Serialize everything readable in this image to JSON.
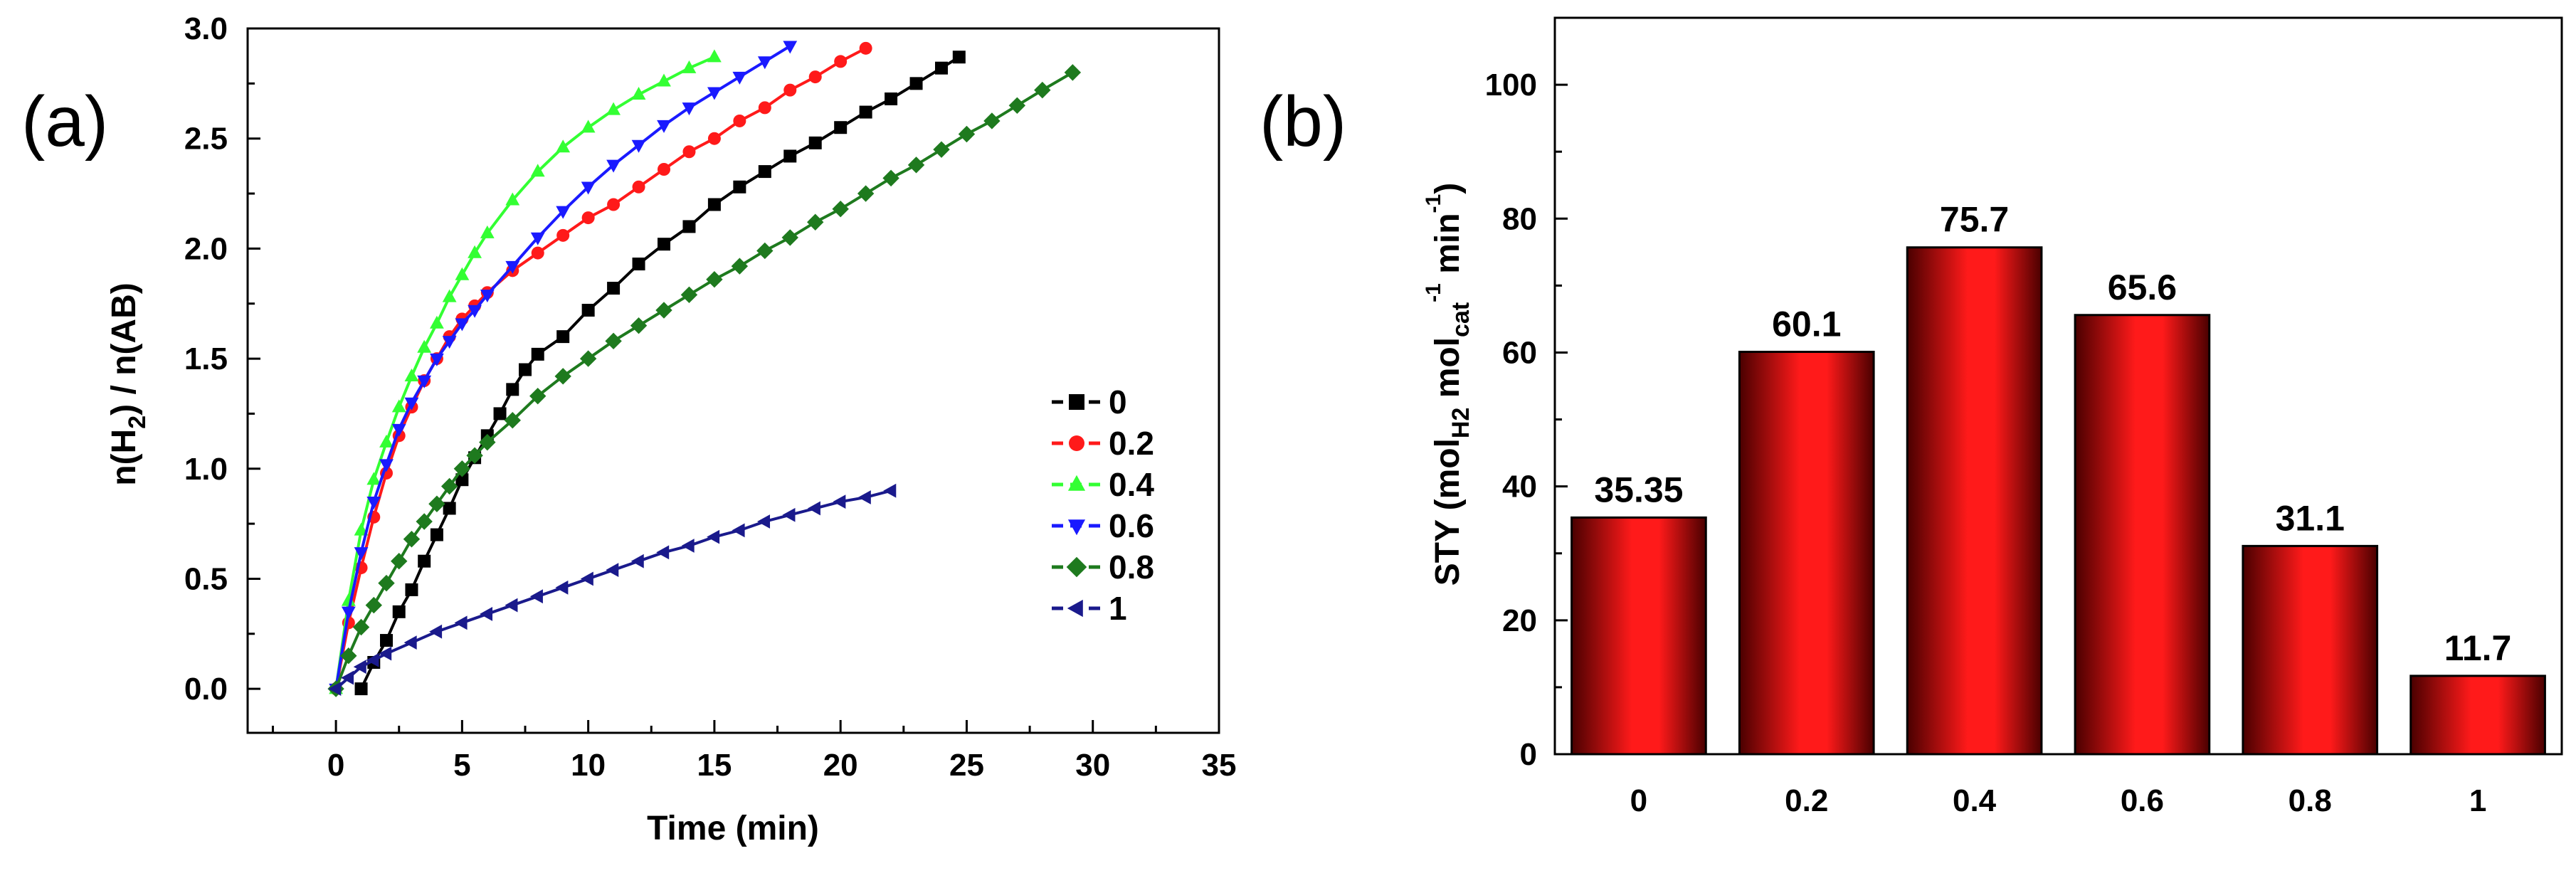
{
  "panels": {
    "a_label": "(a)",
    "b_label": "(b)"
  },
  "colors": {
    "series_0": "#000000",
    "series_0.2": "#ff1a1a",
    "series_0.4": "#33ff33",
    "series_0.6": "#1a1aff",
    "series_0.8": "#1e7a1e",
    "series_1": "#1a1a8c",
    "bar_highlight": "#ff1a1a",
    "bar_dark": "#5a0000"
  },
  "chart_data": [
    {
      "type": "line",
      "xlabel": "Time (min)",
      "ylabel": "n(H2) / n(AB)",
      "ylabel_parts": {
        "pre": "n(H",
        "sub": "2",
        "post": ") / n(AB)"
      },
      "xlim": [
        -3.5,
        35
      ],
      "ylim": [
        -0.2,
        3.0
      ],
      "xticks": [
        0,
        5,
        10,
        15,
        20,
        25,
        30,
        35
      ],
      "yticks": [
        0.0,
        0.5,
        1.0,
        1.5,
        2.0,
        2.5,
        3.0
      ],
      "xtick_labels": [
        "0",
        "5",
        "10",
        "15",
        "20",
        "25",
        "30",
        "35"
      ],
      "ytick_labels": [
        "0.0",
        "0.5",
        "1.0",
        "1.5",
        "2.0",
        "2.5",
        "3.0"
      ],
      "legend_position": "right",
      "series": [
        {
          "name": "0",
          "marker": "square",
          "color": "#000000",
          "x": [
            1.0,
            1.5,
            2.0,
            2.5,
            3.0,
            3.5,
            4.0,
            4.5,
            5.0,
            5.5,
            6.0,
            6.5,
            7.0,
            7.5,
            8.0,
            9.0,
            10.0,
            11.0,
            12.0,
            13.0,
            14.0,
            15.0,
            16.0,
            17.0,
            18.0,
            19.0,
            20.0,
            21.0,
            22.0,
            23.0,
            24.0,
            24.7
          ],
          "y": [
            0.0,
            0.12,
            0.22,
            0.35,
            0.45,
            0.58,
            0.7,
            0.82,
            0.95,
            1.05,
            1.15,
            1.25,
            1.36,
            1.45,
            1.52,
            1.6,
            1.72,
            1.82,
            1.93,
            2.02,
            2.1,
            2.2,
            2.28,
            2.35,
            2.42,
            2.48,
            2.55,
            2.62,
            2.68,
            2.75,
            2.82,
            2.87
          ]
        },
        {
          "name": "0.2",
          "marker": "circle",
          "color": "#ff1a1a",
          "x": [
            0.0,
            0.5,
            1.0,
            1.5,
            2.0,
            2.5,
            3.0,
            3.5,
            4.0,
            4.5,
            5.0,
            5.5,
            6.0,
            7.0,
            8.0,
            9.0,
            10.0,
            11.0,
            12.0,
            13.0,
            14.0,
            15.0,
            16.0,
            17.0,
            18.0,
            19.0,
            20.0,
            21.0
          ],
          "y": [
            0.0,
            0.3,
            0.55,
            0.78,
            0.98,
            1.15,
            1.28,
            1.4,
            1.5,
            1.6,
            1.68,
            1.74,
            1.8,
            1.9,
            1.98,
            2.06,
            2.14,
            2.2,
            2.28,
            2.36,
            2.44,
            2.5,
            2.58,
            2.64,
            2.72,
            2.78,
            2.85,
            2.91
          ]
        },
        {
          "name": "0.4",
          "marker": "triangle-up",
          "color": "#33ff33",
          "x": [
            0.0,
            0.5,
            1.0,
            1.5,
            2.0,
            2.5,
            3.0,
            3.5,
            4.0,
            4.5,
            5.0,
            5.5,
            6.0,
            7.0,
            8.0,
            9.0,
            10.0,
            11.0,
            12.0,
            13.0,
            14.0,
            15.0
          ],
          "y": [
            0.0,
            0.4,
            0.72,
            0.95,
            1.12,
            1.28,
            1.42,
            1.55,
            1.66,
            1.78,
            1.88,
            1.98,
            2.07,
            2.22,
            2.35,
            2.46,
            2.55,
            2.63,
            2.7,
            2.76,
            2.82,
            2.87
          ]
        },
        {
          "name": "0.6",
          "marker": "triangle-down",
          "color": "#1a1aff",
          "x": [
            0.0,
            0.5,
            1.0,
            1.5,
            2.0,
            2.5,
            3.0,
            3.5,
            4.0,
            4.5,
            5.0,
            5.5,
            6.0,
            7.0,
            8.0,
            9.0,
            10.0,
            11.0,
            12.0,
            13.0,
            14.0,
            15.0,
            16.0,
            17.0,
            18.0
          ],
          "y": [
            0.0,
            0.35,
            0.62,
            0.85,
            1.02,
            1.18,
            1.3,
            1.4,
            1.5,
            1.58,
            1.66,
            1.72,
            1.79,
            1.92,
            2.05,
            2.17,
            2.28,
            2.38,
            2.47,
            2.56,
            2.64,
            2.71,
            2.78,
            2.85,
            2.92
          ]
        },
        {
          "name": "0.8",
          "marker": "diamond",
          "color": "#1e7a1e",
          "x": [
            0.0,
            0.5,
            1.0,
            1.5,
            2.0,
            2.5,
            3.0,
            3.5,
            4.0,
            4.5,
            5.0,
            5.5,
            6.0,
            7.0,
            8.0,
            9.0,
            10.0,
            11.0,
            12.0,
            13.0,
            14.0,
            15.0,
            16.0,
            17.0,
            18.0,
            19.0,
            20.0,
            21.0,
            22.0,
            23.0,
            24.0,
            25.0,
            26.0,
            27.0,
            28.0,
            29.2
          ],
          "y": [
            0.0,
            0.15,
            0.28,
            0.38,
            0.48,
            0.58,
            0.68,
            0.76,
            0.84,
            0.92,
            1.0,
            1.06,
            1.12,
            1.22,
            1.33,
            1.42,
            1.5,
            1.58,
            1.65,
            1.72,
            1.79,
            1.86,
            1.92,
            1.99,
            2.05,
            2.12,
            2.18,
            2.25,
            2.32,
            2.38,
            2.45,
            2.52,
            2.58,
            2.65,
            2.72,
            2.8
          ]
        },
        {
          "name": "1",
          "marker": "triangle-left",
          "color": "#1a1a8c",
          "x": [
            0.0,
            0.5,
            1.0,
            1.5,
            2.0,
            3.0,
            4.0,
            5.0,
            6.0,
            7.0,
            8.0,
            9.0,
            10.0,
            11.0,
            12.0,
            13.0,
            14.0,
            15.0,
            16.0,
            17.0,
            18.0,
            19.0,
            20.0,
            21.0,
            22.0
          ],
          "y": [
            0.0,
            0.05,
            0.1,
            0.13,
            0.16,
            0.21,
            0.26,
            0.3,
            0.34,
            0.38,
            0.42,
            0.46,
            0.5,
            0.54,
            0.58,
            0.62,
            0.65,
            0.69,
            0.72,
            0.76,
            0.79,
            0.82,
            0.85,
            0.87,
            0.9
          ]
        }
      ]
    },
    {
      "type": "bar",
      "categories": [
        "0",
        "0.2",
        "0.4",
        "0.6",
        "0.8",
        "1"
      ],
      "values": [
        35.35,
        60.1,
        75.7,
        65.6,
        31.1,
        11.7
      ],
      "value_labels": [
        "35.35",
        "60.1",
        "75.7",
        "65.6",
        "31.1",
        "11.7"
      ],
      "ylabel": "STY (molH2 molcat-1 min-1)",
      "ylabel_parts": {
        "p1": "STY (mol",
        "s1": "H2",
        "p2": " mol",
        "s2": "cat",
        "sup1": "-1",
        "p3": " min",
        "sup2": "-1",
        "p4": ")"
      },
      "ylim": [
        0,
        110
      ],
      "yticks": [
        0,
        20,
        40,
        60,
        80,
        100
      ],
      "ytick_labels": [
        "0",
        "20",
        "40",
        "60",
        "80",
        "100"
      ]
    }
  ]
}
